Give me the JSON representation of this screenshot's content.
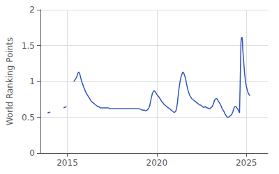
{
  "chart_data": {
    "type": "line",
    "ylabel": "World Ranking Points",
    "color": "#3355bb",
    "grid": true,
    "xlim": [
      2013.5,
      2026.2
    ],
    "xticks": [
      2015,
      2020,
      2025
    ],
    "ylim": [
      0,
      2
    ],
    "yticks": [
      0,
      0.5,
      1,
      1.5,
      2
    ],
    "x": [
      2013.9,
      2014.0,
      2014.05,
      null,
      2014.8,
      2014.85,
      2014.9,
      2014.95,
      null,
      2015.35,
      2015.4,
      2015.45,
      2015.5,
      2015.55,
      2015.6,
      2015.65,
      2015.7,
      2015.75,
      2015.8,
      2015.85,
      2015.9,
      2015.95,
      2016.0,
      2016.05,
      2016.1,
      2016.15,
      2016.2,
      2016.25,
      2016.3,
      2016.35,
      2016.4,
      2016.45,
      2016.5,
      2016.55,
      2016.6,
      2016.65,
      2016.7,
      2016.75,
      2016.8,
      2016.85,
      2016.9,
      2017.0,
      2017.1,
      2017.2,
      2017.3,
      2017.4,
      2017.5,
      2017.6,
      2017.7,
      2017.8,
      2017.9,
      2018.0,
      2018.1,
      2018.2,
      2018.3,
      2018.4,
      2018.5,
      2018.6,
      2018.7,
      2018.8,
      2018.9,
      2019.0,
      2019.1,
      2019.2,
      2019.3,
      2019.35,
      2019.4,
      2019.5,
      2019.55,
      2019.6,
      2019.65,
      2019.7,
      2019.75,
      2019.8,
      2019.85,
      2019.9,
      2019.95,
      2020.0,
      2020.05,
      2020.1,
      2020.15,
      2020.2,
      2020.25,
      2020.3,
      2020.35,
      2020.4,
      2020.45,
      2020.5,
      2020.55,
      2020.6,
      2020.65,
      2020.7,
      2020.75,
      2020.8,
      2020.85,
      2020.9,
      2020.95,
      2021.0,
      2021.05,
      2021.1,
      2021.15,
      2021.2,
      2021.25,
      2021.3,
      2021.35,
      2021.4,
      2021.45,
      2021.5,
      2021.55,
      2021.6,
      2021.65,
      2021.7,
      2021.75,
      2021.8,
      2021.85,
      2021.9,
      2021.95,
      2022.0,
      2022.05,
      2022.1,
      2022.15,
      2022.2,
      2022.25,
      2022.3,
      2022.35,
      2022.4,
      2022.45,
      2022.5,
      2022.55,
      2022.6,
      2022.65,
      2022.7,
      2022.75,
      2022.8,
      2022.85,
      2022.9,
      2022.95,
      2023.0,
      2023.05,
      2023.1,
      2023.15,
      2023.2,
      2023.25,
      2023.3,
      2023.35,
      2023.4,
      2023.45,
      2023.5,
      2023.55,
      2023.6,
      2023.65,
      2023.7,
      2023.75,
      2023.8,
      2023.85,
      2023.9,
      2023.95,
      2024.0,
      2024.05,
      2024.1,
      2024.15,
      2024.2,
      2024.25,
      2024.3,
      2024.35,
      2024.4,
      2024.45,
      2024.5,
      2024.55,
      2024.6,
      2024.62,
      2024.65,
      2024.68,
      2024.7,
      2024.72,
      2024.75,
      2024.78,
      2024.8,
      2024.85,
      2024.9,
      2024.95,
      2025.0,
      2025.05,
      2025.1,
      2025.15,
      2025.2
    ],
    "values": [
      0.56,
      0.57,
      0.57,
      null,
      0.63,
      0.64,
      0.64,
      0.65,
      null,
      1.0,
      1.01,
      1.03,
      1.05,
      1.08,
      1.12,
      1.13,
      1.1,
      1.05,
      1.0,
      0.97,
      0.93,
      0.9,
      0.87,
      0.84,
      0.82,
      0.8,
      0.78,
      0.76,
      0.74,
      0.72,
      0.71,
      0.7,
      0.69,
      0.68,
      0.67,
      0.66,
      0.65,
      0.65,
      0.64,
      0.63,
      0.63,
      0.63,
      0.63,
      0.63,
      0.63,
      0.62,
      0.62,
      0.62,
      0.62,
      0.62,
      0.62,
      0.62,
      0.62,
      0.62,
      0.62,
      0.62,
      0.62,
      0.62,
      0.62,
      0.62,
      0.62,
      0.62,
      0.61,
      0.6,
      0.6,
      0.59,
      0.59,
      0.61,
      0.63,
      0.66,
      0.72,
      0.78,
      0.83,
      0.86,
      0.87,
      0.86,
      0.84,
      0.82,
      0.8,
      0.79,
      0.77,
      0.75,
      0.73,
      0.71,
      0.7,
      0.68,
      0.67,
      0.66,
      0.65,
      0.64,
      0.63,
      0.62,
      0.61,
      0.6,
      0.59,
      0.58,
      0.57,
      0.57,
      0.58,
      0.62,
      0.7,
      0.82,
      0.92,
      1.0,
      1.06,
      1.1,
      1.13,
      1.12,
      1.08,
      1.05,
      0.98,
      0.92,
      0.87,
      0.83,
      0.8,
      0.78,
      0.76,
      0.75,
      0.74,
      0.73,
      0.72,
      0.71,
      0.7,
      0.69,
      0.68,
      0.67,
      0.67,
      0.66,
      0.65,
      0.64,
      0.64,
      0.65,
      0.64,
      0.63,
      0.63,
      0.62,
      0.62,
      0.63,
      0.64,
      0.65,
      0.68,
      0.72,
      0.75,
      0.76,
      0.76,
      0.74,
      0.72,
      0.7,
      0.68,
      0.65,
      0.62,
      0.6,
      0.58,
      0.55,
      0.53,
      0.51,
      0.5,
      0.5,
      0.51,
      0.52,
      0.53,
      0.55,
      0.58,
      0.62,
      0.65,
      0.65,
      0.64,
      0.62,
      0.6,
      0.57,
      0.56,
      0.92,
      1.3,
      1.55,
      1.6,
      1.62,
      1.58,
      1.45,
      1.28,
      1.12,
      1.0,
      0.93,
      0.88,
      0.84,
      0.82,
      0.8
    ]
  }
}
